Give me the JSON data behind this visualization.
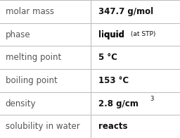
{
  "rows": [
    {
      "label": "molar mass",
      "value": "347.7 g/mol",
      "type": "plain"
    },
    {
      "label": "phase",
      "value": "liquid",
      "type": "phase",
      "suffix": " (at STP)"
    },
    {
      "label": "melting point",
      "value": "5 °C",
      "type": "plain"
    },
    {
      "label": "boiling point",
      "value": "153 °C",
      "type": "plain"
    },
    {
      "label": "density",
      "value": "2.8 g/cm",
      "type": "super",
      "superscript": "3"
    },
    {
      "label": "solubility in water",
      "value": "reacts",
      "type": "plain"
    }
  ],
  "col_split": 0.505,
  "background_color": "#ffffff",
  "line_color": "#bbbbbb",
  "label_fontsize": 8.5,
  "value_fontsize": 8.5,
  "suffix_fontsize": 6.5,
  "super_fontsize": 6.0,
  "text_color": "#111111",
  "label_color": "#555555",
  "fig_width": 2.56,
  "fig_height": 1.96,
  "dpi": 100
}
